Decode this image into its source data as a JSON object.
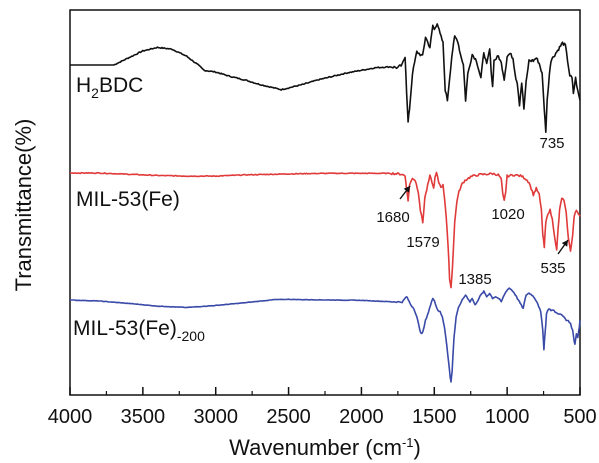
{
  "chart_data": {
    "type": "line",
    "xlabel": "Wavenumber (cm",
    "xlabel_sup": "-1",
    "xlabel_end": ")",
    "ylabel": "Transmittance(%)",
    "xlim": [
      4000,
      500
    ],
    "x_reversed": true,
    "xticks": [
      4000,
      3500,
      3000,
      2500,
      2000,
      1500,
      1000,
      500
    ],
    "grid": false,
    "series": [
      {
        "name": "H2BDC",
        "label_main": "H",
        "label_sub": "2",
        "label_rest": "BDC",
        "color": "#111111",
        "start": 3700,
        "points": [
          [
            3700,
            0.0
          ],
          [
            3600,
            0.8
          ],
          [
            3500,
            1.6
          ],
          [
            3400,
            2.0
          ],
          [
            3300,
            1.8
          ],
          [
            3200,
            1.0
          ],
          [
            3120,
            0.0
          ],
          [
            3080,
            -0.6
          ],
          [
            3000,
            -0.8
          ],
          [
            2900,
            -1.3
          ],
          [
            2800,
            -1.7
          ],
          [
            2700,
            -2.2
          ],
          [
            2600,
            -2.6
          ],
          [
            2550,
            -2.8
          ],
          [
            2500,
            -2.6
          ],
          [
            2400,
            -2.2
          ],
          [
            2300,
            -1.7
          ],
          [
            2200,
            -1.3
          ],
          [
            2100,
            -0.9
          ],
          [
            2000,
            -0.6
          ],
          [
            1900,
            -0.3
          ],
          [
            1800,
            -0.2
          ],
          [
            1750,
            -0.3
          ],
          [
            1720,
            0.0
          ],
          [
            1700,
            1.0
          ],
          [
            1690,
            -3.0
          ],
          [
            1680,
            -6.5
          ],
          [
            1670,
            -5.0
          ],
          [
            1650,
            -1.0
          ],
          [
            1620,
            1.5
          ],
          [
            1580,
            1.0
          ],
          [
            1560,
            3.2
          ],
          [
            1530,
            2.0
          ],
          [
            1510,
            4.5
          ],
          [
            1500,
            4.0
          ],
          [
            1480,
            4.8
          ],
          [
            1460,
            3.5
          ],
          [
            1440,
            2.5
          ],
          [
            1425,
            -2.8
          ],
          [
            1410,
            -4.0
          ],
          [
            1395,
            -1.5
          ],
          [
            1380,
            1.0
          ],
          [
            1360,
            3.2
          ],
          [
            1340,
            2.8
          ],
          [
            1320,
            1.2
          ],
          [
            1300,
            0.0
          ],
          [
            1285,
            -4.0
          ],
          [
            1270,
            -1.0
          ],
          [
            1240,
            1.2
          ],
          [
            1210,
            0.5
          ],
          [
            1180,
            -1.5
          ],
          [
            1160,
            1.5
          ],
          [
            1140,
            0.0
          ],
          [
            1120,
            1.8
          ],
          [
            1110,
            -0.5
          ],
          [
            1100,
            -2.5
          ],
          [
            1090,
            0.5
          ],
          [
            1060,
            1.0
          ],
          [
            1040,
            0.2
          ],
          [
            1020,
            -1.6
          ],
          [
            1000,
            1.0
          ],
          [
            980,
            1.3
          ],
          [
            960,
            0.8
          ],
          [
            940,
            -1.5
          ],
          [
            930,
            -2.0
          ],
          [
            915,
            -4.5
          ],
          [
            900,
            -2.0
          ],
          [
            885,
            -5.0
          ],
          [
            870,
            -2.0
          ],
          [
            850,
            0.5
          ],
          [
            820,
            0.5
          ],
          [
            800,
            0.8
          ],
          [
            780,
            0.2
          ],
          [
            760,
            -1.0
          ],
          [
            745,
            -5.0
          ],
          [
            735,
            -7.5
          ],
          [
            725,
            -4.0
          ],
          [
            710,
            -1.0
          ],
          [
            700,
            0.5
          ],
          [
            680,
            1.0
          ],
          [
            660,
            1.5
          ],
          [
            640,
            2.0
          ],
          [
            620,
            2.5
          ],
          [
            600,
            2.2
          ],
          [
            585,
            0.5
          ],
          [
            570,
            -1.2
          ],
          [
            555,
            -1.5
          ],
          [
            545,
            -3.2
          ],
          [
            530,
            -1.5
          ],
          [
            515,
            -3.0
          ],
          [
            500,
            -4.0
          ]
        ]
      },
      {
        "name": "MIL-53(Fe)",
        "label_main": "MIL-53(Fe)",
        "color": "#e03a3a",
        "start": 4000,
        "points": [
          [
            4000,
            0.0
          ],
          [
            3800,
            0.0
          ],
          [
            3600,
            -0.2
          ],
          [
            3400,
            -0.4
          ],
          [
            3200,
            -0.5
          ],
          [
            3000,
            -0.5
          ],
          [
            2800,
            -0.3
          ],
          [
            2600,
            -0.2
          ],
          [
            2400,
            -0.1
          ],
          [
            2200,
            -0.05
          ],
          [
            2000,
            -0.05
          ],
          [
            1800,
            -0.05
          ],
          [
            1720,
            -0.2
          ],
          [
            1700,
            -0.5
          ],
          [
            1690,
            -2.5
          ],
          [
            1680,
            -4.5
          ],
          [
            1670,
            -2.0
          ],
          [
            1650,
            -0.8
          ],
          [
            1630,
            -1.2
          ],
          [
            1610,
            -3.0
          ],
          [
            1595,
            -6.0
          ],
          [
            1579,
            -8.0
          ],
          [
            1565,
            -4.0
          ],
          [
            1545,
            -2.0
          ],
          [
            1530,
            -0.5
          ],
          [
            1515,
            -1.5
          ],
          [
            1505,
            -2.5
          ],
          [
            1495,
            -0.8
          ],
          [
            1485,
            0.0
          ],
          [
            1470,
            -1.5
          ],
          [
            1455,
            -2.2
          ],
          [
            1440,
            -2.0
          ],
          [
            1430,
            -4.0
          ],
          [
            1418,
            -7.0
          ],
          [
            1405,
            -12.0
          ],
          [
            1395,
            -17.0
          ],
          [
            1385,
            -18.5
          ],
          [
            1375,
            -15.0
          ],
          [
            1360,
            -8.0
          ],
          [
            1345,
            -4.5
          ],
          [
            1330,
            -3.0
          ],
          [
            1310,
            -1.8
          ],
          [
            1290,
            -1.2
          ],
          [
            1250,
            -0.6
          ],
          [
            1200,
            -0.3
          ],
          [
            1150,
            -0.2
          ],
          [
            1100,
            -0.1
          ],
          [
            1060,
            -0.3
          ],
          [
            1040,
            -1.0
          ],
          [
            1030,
            -3.5
          ],
          [
            1020,
            -4.5
          ],
          [
            1010,
            -3.0
          ],
          [
            1000,
            -0.5
          ],
          [
            950,
            -0.3
          ],
          [
            900,
            -0.5
          ],
          [
            870,
            -1.0
          ],
          [
            850,
            -1.5
          ],
          [
            820,
            -3.5
          ],
          [
            800,
            -2.5
          ],
          [
            780,
            -3.5
          ],
          [
            765,
            -6.0
          ],
          [
            755,
            -10.0
          ],
          [
            745,
            -12.0
          ],
          [
            735,
            -8.0
          ],
          [
            720,
            -6.5
          ],
          [
            705,
            -6.0
          ],
          [
            690,
            -7.5
          ],
          [
            675,
            -10.0
          ],
          [
            660,
            -12.5
          ],
          [
            650,
            -9.0
          ],
          [
            640,
            -6.0
          ],
          [
            625,
            -4.0
          ],
          [
            610,
            -4.5
          ],
          [
            595,
            -6.5
          ],
          [
            580,
            -10.5
          ],
          [
            565,
            -12.5
          ],
          [
            550,
            -10.0
          ],
          [
            540,
            -7.0
          ],
          [
            525,
            -6.0
          ],
          [
            510,
            -6.5
          ],
          [
            500,
            -7.0
          ]
        ]
      },
      {
        "name": "MIL-53(Fe)-200",
        "label_main": "MIL-53(Fe)",
        "label_sub": "-200",
        "color": "#3a4aa8",
        "start": 4000,
        "points": [
          [
            4000,
            0.0
          ],
          [
            3800,
            -0.3
          ],
          [
            3600,
            -1.0
          ],
          [
            3400,
            -1.8
          ],
          [
            3200,
            -2.2
          ],
          [
            3000,
            -1.6
          ],
          [
            2800,
            -0.8
          ],
          [
            2600,
            0.1
          ],
          [
            2500,
            0.2
          ],
          [
            2400,
            0.1
          ],
          [
            2200,
            0.0
          ],
          [
            2000,
            -0.1
          ],
          [
            1800,
            -0.5
          ],
          [
            1720,
            -0.6
          ],
          [
            1700,
            0.5
          ],
          [
            1690,
            1.0
          ],
          [
            1680,
            0.2
          ],
          [
            1660,
            -1.5
          ],
          [
            1640,
            -2.5
          ],
          [
            1620,
            -5.0
          ],
          [
            1600,
            -8.5
          ],
          [
            1590,
            -10.0
          ],
          [
            1579,
            -9.5
          ],
          [
            1560,
            -6.0
          ],
          [
            1540,
            -3.5
          ],
          [
            1525,
            -1.5
          ],
          [
            1510,
            0.5
          ],
          [
            1500,
            0.0
          ],
          [
            1490,
            -1.5
          ],
          [
            1475,
            -3.0
          ],
          [
            1460,
            -3.5
          ],
          [
            1445,
            -5.0
          ],
          [
            1430,
            -8.0
          ],
          [
            1415,
            -13.0
          ],
          [
            1400,
            -19.0
          ],
          [
            1390,
            -23.0
          ],
          [
            1385,
            -24.0
          ],
          [
            1378,
            -21.0
          ],
          [
            1365,
            -11.0
          ],
          [
            1350,
            -5.0
          ],
          [
            1335,
            -2.5
          ],
          [
            1315,
            -0.5
          ],
          [
            1300,
            0.5
          ],
          [
            1285,
            1.5
          ],
          [
            1270,
            0.5
          ],
          [
            1255,
            -0.5
          ],
          [
            1240,
            0.5
          ],
          [
            1220,
            -1.5
          ],
          [
            1200,
            0.0
          ],
          [
            1180,
            1.5
          ],
          [
            1160,
            2.5
          ],
          [
            1140,
            1.0
          ],
          [
            1120,
            2.0
          ],
          [
            1100,
            0.5
          ],
          [
            1080,
            1.0
          ],
          [
            1060,
            0.5
          ],
          [
            1040,
            -0.5
          ],
          [
            1020,
            1.5
          ],
          [
            1000,
            3.0
          ],
          [
            985,
            3.5
          ],
          [
            970,
            3.0
          ],
          [
            950,
            2.0
          ],
          [
            930,
            0.5
          ],
          [
            910,
            -1.0
          ],
          [
            890,
            -2.5
          ],
          [
            870,
            1.5
          ],
          [
            850,
            2.0
          ],
          [
            830,
            1.5
          ],
          [
            810,
            0.5
          ],
          [
            790,
            -1.0
          ],
          [
            770,
            -3.5
          ],
          [
            755,
            -9.0
          ],
          [
            748,
            -14.5
          ],
          [
            740,
            -10.0
          ],
          [
            730,
            -4.0
          ],
          [
            715,
            -2.5
          ],
          [
            700,
            -3.0
          ],
          [
            685,
            -3.0
          ],
          [
            670,
            -3.5
          ],
          [
            655,
            -4.0
          ],
          [
            640,
            -4.0
          ],
          [
            625,
            -4.5
          ],
          [
            610,
            -5.0
          ],
          [
            595,
            -6.0
          ],
          [
            580,
            -6.0
          ],
          [
            565,
            -7.0
          ],
          [
            550,
            -9.0
          ],
          [
            540,
            -12.0
          ],
          [
            535,
            -13.0
          ],
          [
            525,
            -10.0
          ],
          [
            515,
            -11.0
          ],
          [
            505,
            -8.0
          ],
          [
            500,
            -6.0
          ]
        ]
      }
    ],
    "annotations": [
      {
        "text": "735",
        "x": 735,
        "series": 0,
        "arrow": false
      },
      {
        "text": "1680",
        "x": 1680,
        "series": 1,
        "arrow": true
      },
      {
        "text": "1579",
        "x": 1579,
        "series": 1,
        "arrow": false
      },
      {
        "text": "1020",
        "x": 1020,
        "series": 1,
        "arrow": false
      },
      {
        "text": "1385",
        "x": 1385,
        "series": 1,
        "arrow": false
      },
      {
        "text": "535",
        "x": 535,
        "series": 1,
        "arrow": true
      }
    ]
  }
}
